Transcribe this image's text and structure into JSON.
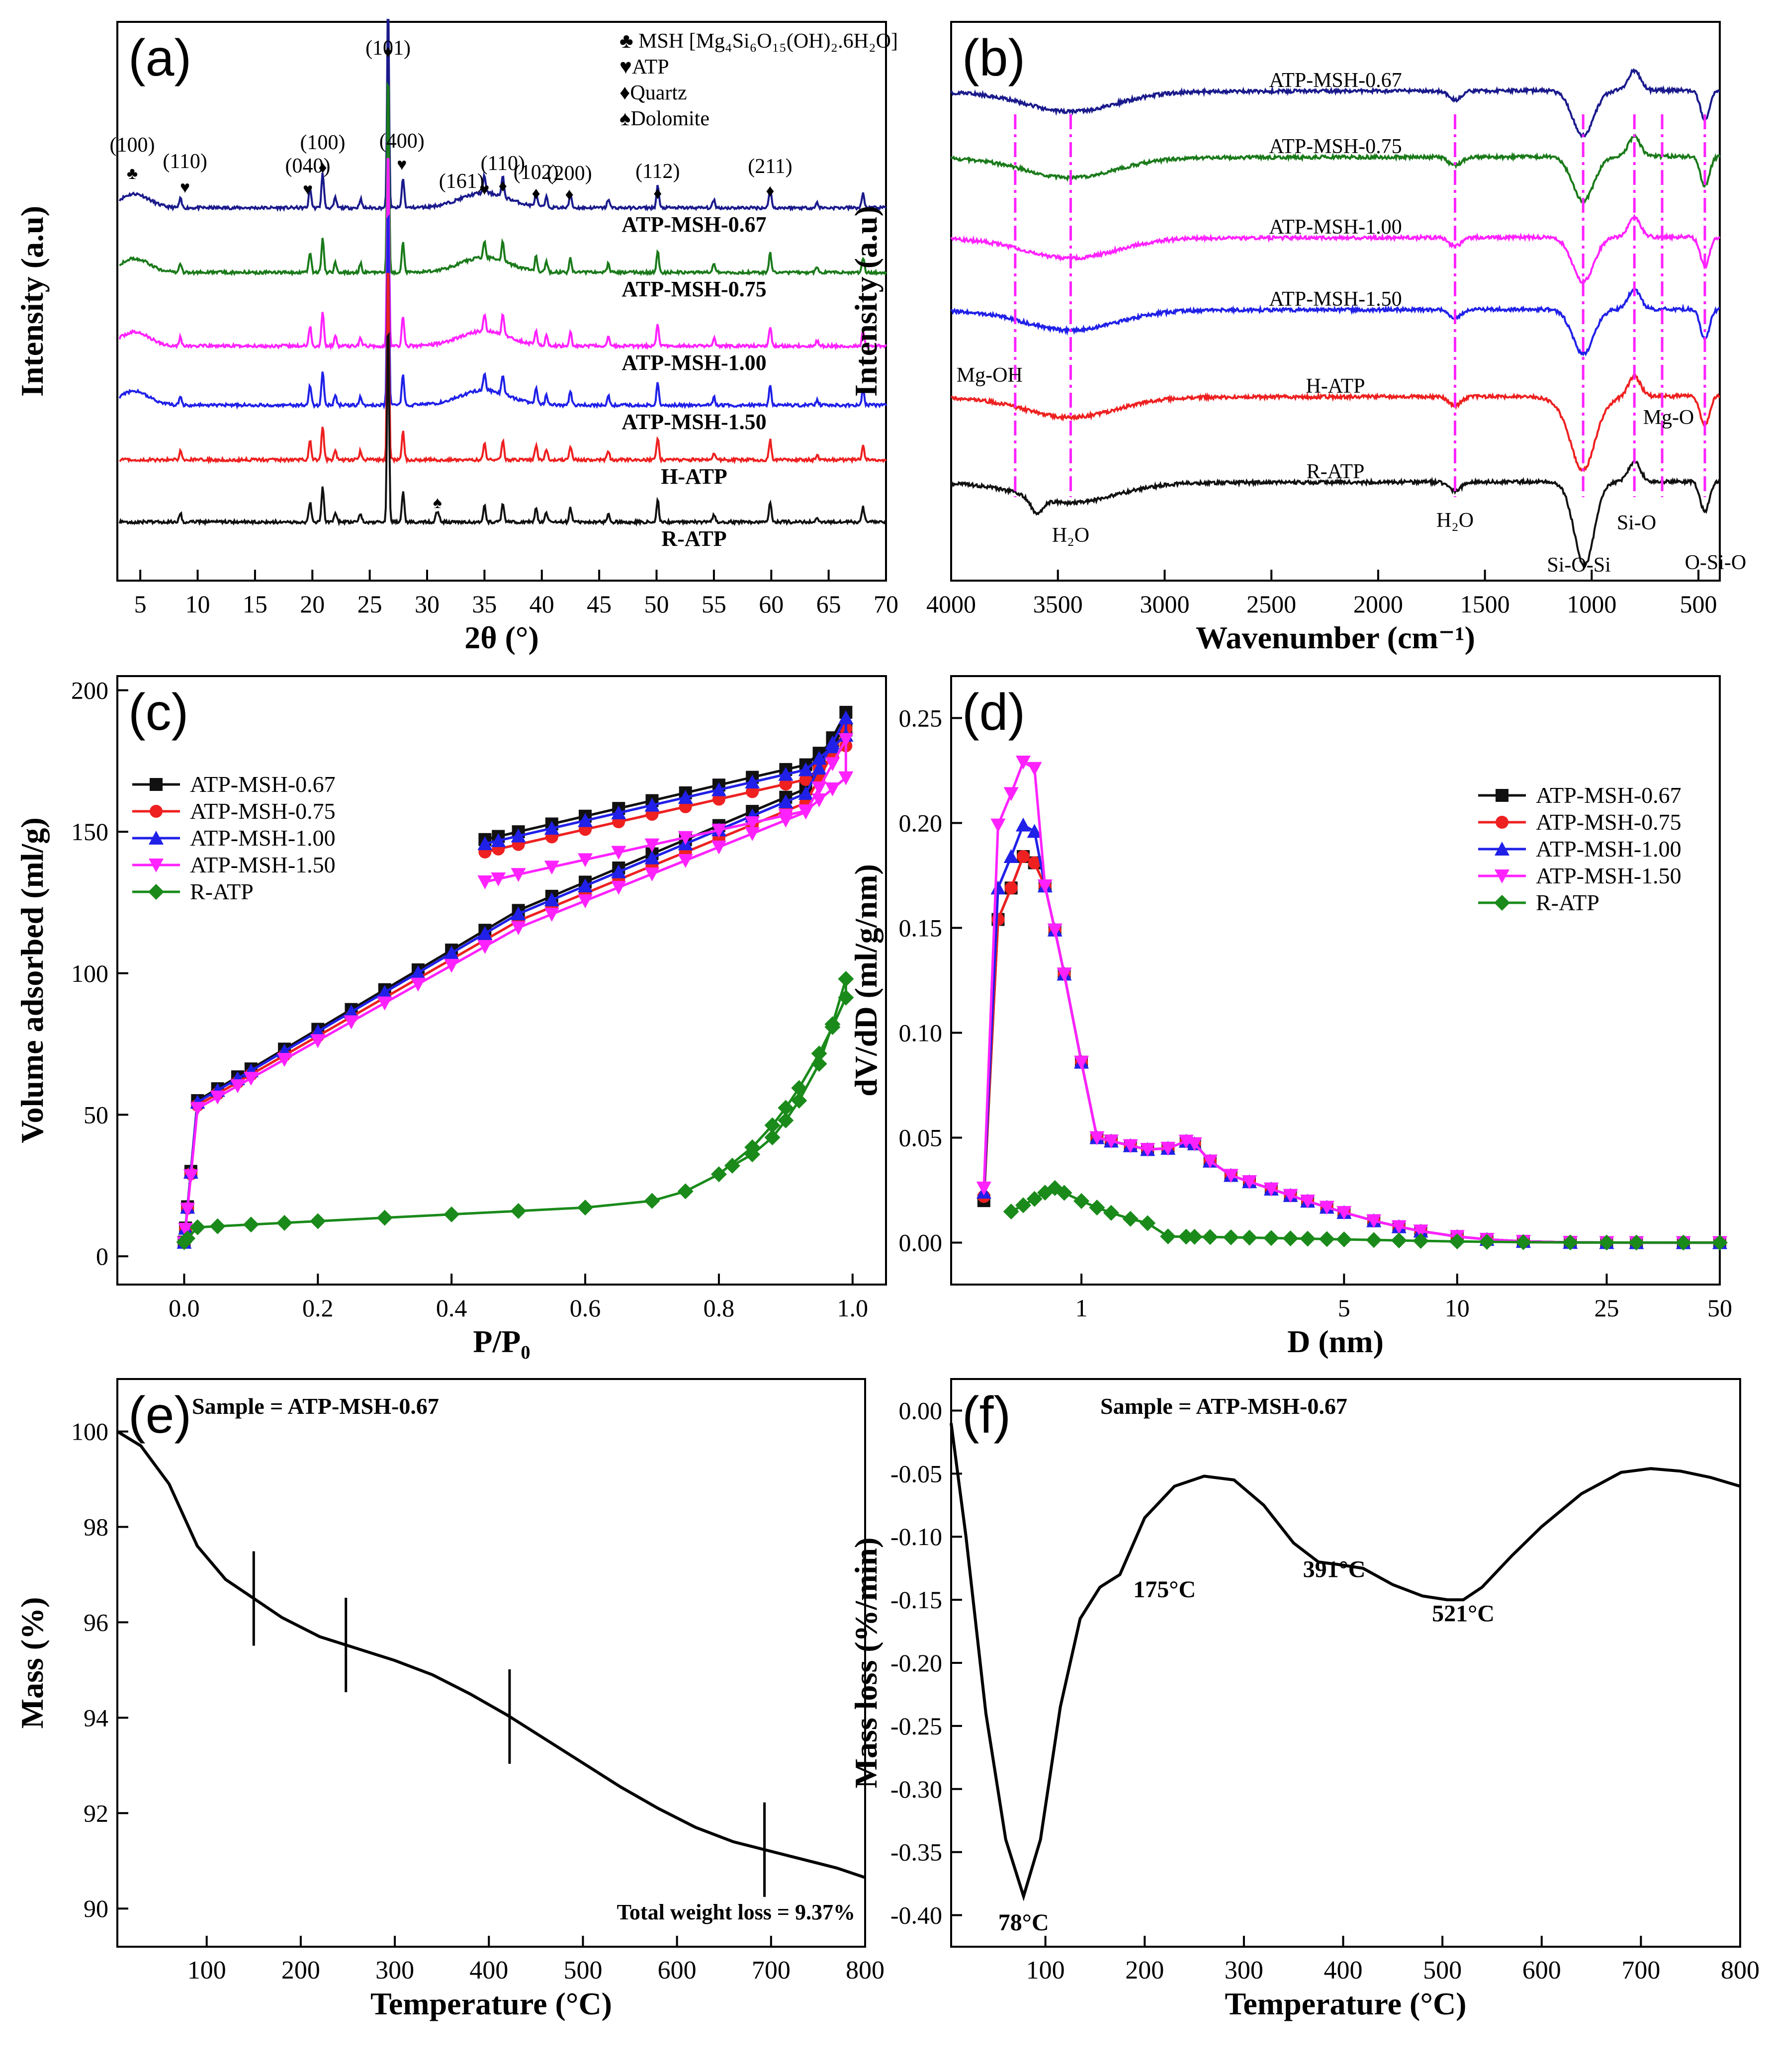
{
  "chart_data": [
    {
      "id": "a",
      "type": "line",
      "panel_label": "(a)",
      "xlabel": "2θ (°)",
      "ylabel": "Intensity (a.u)",
      "xlim": [
        3,
        70
      ],
      "xticks": [
        5,
        10,
        15,
        20,
        25,
        30,
        35,
        40,
        45,
        50,
        55,
        60,
        65,
        70
      ],
      "series": [
        {
          "name": "ATP-MSH-0.67",
          "color": "#1a1a8c"
        },
        {
          "name": "ATP-MSH-0.75",
          "color": "#1a7a1a"
        },
        {
          "name": "ATP-MSH-1.00",
          "color": "#ff22ff"
        },
        {
          "name": "ATP-MSH-1.50",
          "color": "#2020e8"
        },
        {
          "name": "H-ATP",
          "color": "#ee2020"
        },
        {
          "name": "R-ATP",
          "color": "#111111"
        }
      ],
      "peak_labels": [
        {
          "text": "(100)",
          "x": 4.3
        },
        {
          "text": "(110)",
          "x": 8.9
        },
        {
          "text": "(040)",
          "x": 19.6
        },
        {
          "text": "(100)",
          "x": 20.9
        },
        {
          "text": "(101)",
          "x": 26.6
        },
        {
          "text": "(400)",
          "x": 27.8
        },
        {
          "text": "(161)",
          "x": 33.0
        },
        {
          "text": "(110)",
          "x": 36.6
        },
        {
          "text": "(102)",
          "x": 39.5
        },
        {
          "text": "(200)",
          "x": 42.4
        },
        {
          "text": "(112)",
          "x": 50.1
        },
        {
          "text": "(211)",
          "x": 59.9
        }
      ],
      "legend": [
        {
          "text": "♣ MSH [Mg₄Si₆O₁₅(OH)₂.6H₂O]"
        },
        {
          "text": "♥ATP"
        },
        {
          "text": "♦Quartz"
        },
        {
          "text": "♠Dolomite"
        }
      ]
    },
    {
      "id": "b",
      "type": "line",
      "panel_label": "(b)",
      "xlabel": "Wavenumber (cm⁻¹)",
      "ylabel": "Intensity (a.u)",
      "xlim": [
        4000,
        400
      ],
      "xticks": [
        4000,
        3500,
        3000,
        2500,
        2000,
        1500,
        1000,
        500
      ],
      "series": [
        {
          "name": "ATP-MSH-0.67",
          "color": "#1a1a8c"
        },
        {
          "name": "ATP-MSH-0.75",
          "color": "#1a7a1a"
        },
        {
          "name": "ATP-MSH-1.00",
          "color": "#ff22ff"
        },
        {
          "name": "ATP-MSH-1.50",
          "color": "#2020e8"
        },
        {
          "name": "H-ATP",
          "color": "#ee2020"
        },
        {
          "name": "R-ATP",
          "color": "#111111"
        }
      ],
      "annotations": [
        "Mg-OH",
        "H₂O",
        "H₂O",
        "Si-O-Si",
        "Si-O",
        "Mg-O",
        "O-Si-O"
      ],
      "ref_lines": [
        3700,
        3440,
        1640,
        1040,
        800,
        670,
        470
      ]
    },
    {
      "id": "c",
      "type": "line",
      "panel_label": "(c)",
      "xlabel": "P/P₀",
      "ylabel": "Volume adsorbed (ml/g)",
      "xlim": [
        -0.1,
        1.05
      ],
      "ylim": [
        -10,
        205
      ],
      "xticks": [
        "0.0",
        "0.2",
        "0.4",
        "0.6",
        "0.8",
        "1.0"
      ],
      "yticks": [
        0,
        50,
        100,
        150,
        200
      ],
      "series": [
        {
          "name": "ATP-MSH-0.67",
          "color": "#111111",
          "marker": "square"
        },
        {
          "name": "ATP-MSH-0.75",
          "color": "#ee2020",
          "marker": "circle"
        },
        {
          "name": "ATP-MSH-1.00",
          "color": "#2020e8",
          "marker": "triangle-up"
        },
        {
          "name": "ATP-MSH-1.50",
          "color": "#ff22ff",
          "marker": "triangle-down"
        },
        {
          "name": "R-ATP",
          "color": "#1a8a1a",
          "marker": "diamond"
        }
      ]
    },
    {
      "id": "d",
      "type": "line",
      "panel_label": "(d)",
      "xlabel": "D (nm)",
      "ylabel": "dV/dD (ml/g/nm)",
      "xscale": "log",
      "xlim": [
        0.45,
        50
      ],
      "ylim": [
        -0.02,
        0.27
      ],
      "xticks": [
        "1",
        "5",
        "10",
        "25",
        "50"
      ],
      "yticks": [
        "0.00",
        "0.05",
        "0.10",
        "0.15",
        "0.20",
        "0.25"
      ],
      "series": [
        {
          "name": "ATP-MSH-0.67",
          "color": "#111111",
          "marker": "square"
        },
        {
          "name": "ATP-MSH-0.75",
          "color": "#ee2020",
          "marker": "circle"
        },
        {
          "name": "ATP-MSH-1.00",
          "color": "#2020e8",
          "marker": "triangle-up"
        },
        {
          "name": "ATP-MSH-1.50",
          "color": "#ff22ff",
          "marker": "triangle-down"
        },
        {
          "name": "R-ATP",
          "color": "#1a8a1a",
          "marker": "diamond"
        }
      ]
    },
    {
      "id": "e",
      "type": "line",
      "panel_label": "(e)",
      "title": "Sample = ATP-MSH-0.67",
      "xlabel": "Temperature (°C)",
      "ylabel": "Mass (%)",
      "xlim": [
        5,
        800
      ],
      "ylim": [
        89.2,
        101.1
      ],
      "xticks": [
        100,
        200,
        300,
        400,
        500,
        600,
        700,
        800
      ],
      "yticks": [
        90,
        92,
        94,
        96,
        98,
        100
      ],
      "x": [
        5,
        30,
        60,
        90,
        120,
        150,
        180,
        220,
        260,
        300,
        340,
        380,
        420,
        460,
        500,
        540,
        580,
        620,
        660,
        700,
        740,
        770,
        800
      ],
      "values": [
        100.0,
        99.7,
        98.9,
        97.6,
        96.9,
        96.5,
        96.1,
        95.7,
        95.45,
        95.2,
        94.9,
        94.5,
        94.05,
        93.55,
        93.05,
        92.55,
        92.1,
        91.7,
        91.4,
        91.2,
        91.0,
        90.85,
        90.65
      ],
      "markers_x": [
        150,
        248,
        422,
        693
      ],
      "note": "Total weight loss = 9.37%"
    },
    {
      "id": "f",
      "type": "line",
      "panel_label": "(f)",
      "title": "Sample = ATP-MSH-0.67",
      "xlabel": "Temperature (°C)",
      "ylabel": "Mass loss (%/min)",
      "xlim": [
        5,
        800
      ],
      "ylim": [
        -0.425,
        0.025
      ],
      "xticks": [
        100,
        200,
        300,
        400,
        500,
        600,
        700,
        800
      ],
      "yticks": [
        "0.00",
        "-0.05",
        "-0.10",
        "-0.15",
        "-0.20",
        "-0.25",
        "-0.30",
        "-0.35",
        "-0.40"
      ],
      "x": [
        5,
        20,
        40,
        60,
        78,
        95,
        115,
        135,
        155,
        175,
        200,
        230,
        260,
        290,
        320,
        350,
        375,
        395,
        420,
        450,
        480,
        505,
        521,
        540,
        570,
        600,
        640,
        680,
        710,
        740,
        770,
        800
      ],
      "values": [
        -0.01,
        -0.1,
        -0.24,
        -0.34,
        -0.385,
        -0.34,
        -0.235,
        -0.165,
        -0.14,
        -0.13,
        -0.085,
        -0.06,
        -0.052,
        -0.055,
        -0.075,
        -0.105,
        -0.12,
        -0.122,
        -0.125,
        -0.138,
        -0.147,
        -0.15,
        -0.15,
        -0.14,
        -0.115,
        -0.092,
        -0.066,
        -0.049,
        -0.046,
        -0.048,
        -0.053,
        -0.06
      ],
      "peak_labels": [
        "78°C",
        "175°C",
        "391°C",
        "521°C"
      ]
    }
  ]
}
